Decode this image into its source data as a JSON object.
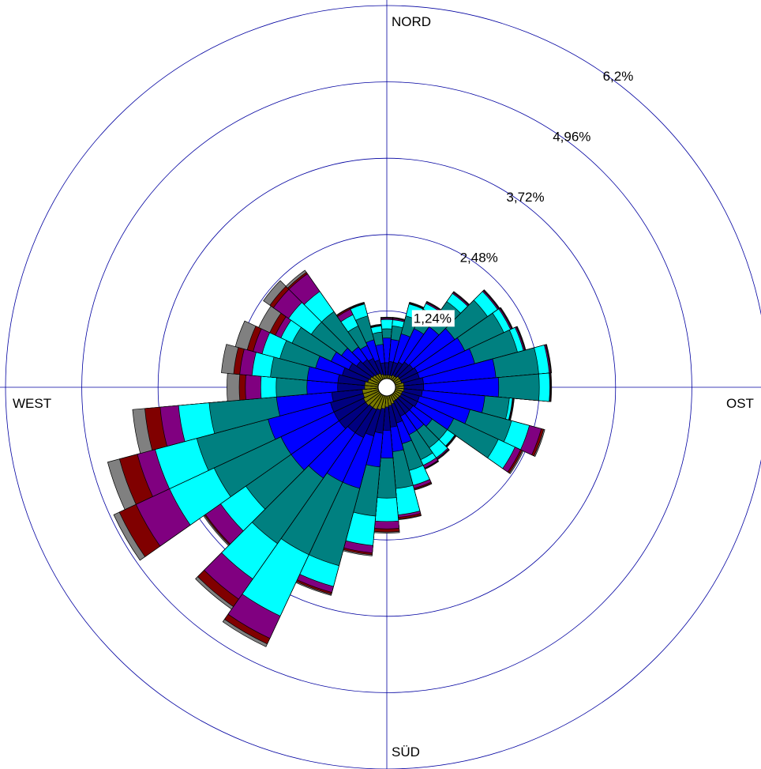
{
  "chart_data": {
    "type": "wind-rose",
    "direction_labels": {
      "north": "NORD",
      "east": "OST",
      "south": "SÜD",
      "west": "WEST"
    },
    "ring_values": [
      1.24,
      2.48,
      3.72,
      4.96,
      6.2
    ],
    "ring_labels": [
      "1,24%",
      "2,48%",
      "3,72%",
      "4,96%",
      "6,2%"
    ],
    "axis_max": 6.2,
    "sector_count": 36,
    "sector_width_deg": 10,
    "class_colors": [
      "#7a7a00",
      "#000080",
      "#0000ff",
      "#008080",
      "#00ffff",
      "#800080",
      "#800000",
      "#808080"
    ],
    "cumulative_percent_by_class_note": "cumulative frequency (%) per speed class, sectors clockwise from 0° (Nord)",
    "sectors": [
      {
        "dir": 0,
        "cum": [
          0.2,
          0.4,
          0.8,
          0.95,
          1.1,
          1.12,
          1.13,
          1.14
        ]
      },
      {
        "dir": 10,
        "cum": [
          0.2,
          0.42,
          0.78,
          1.0,
          1.1,
          1.12,
          1.13,
          1.14
        ]
      },
      {
        "dir": 20,
        "cum": [
          0.2,
          0.42,
          0.9,
          1.2,
          1.4,
          1.41,
          1.42,
          1.43
        ]
      },
      {
        "dir": 30,
        "cum": [
          0.22,
          0.45,
          1.05,
          1.4,
          1.5,
          1.52,
          1.53,
          1.54
        ]
      },
      {
        "dir": 40,
        "cum": [
          0.22,
          0.5,
          1.2,
          1.7,
          1.86,
          1.88,
          1.89,
          1.9
        ]
      },
      {
        "dir": 50,
        "cum": [
          0.25,
          0.52,
          1.35,
          2.0,
          2.2,
          2.22,
          2.23,
          2.24
        ]
      },
      {
        "dir": 60,
        "cum": [
          0.25,
          0.55,
          1.4,
          2.1,
          2.22,
          2.24,
          2.25,
          2.26
        ]
      },
      {
        "dir": 70,
        "cum": [
          0.25,
          0.55,
          1.48,
          2.2,
          2.3,
          2.32,
          2.33,
          2.34
        ]
      },
      {
        "dir": 80,
        "cum": [
          0.28,
          0.6,
          1.78,
          2.48,
          2.65,
          2.67,
          2.68,
          2.69
        ]
      },
      {
        "dir": 90,
        "cum": [
          0.28,
          0.6,
          1.82,
          2.48,
          2.65,
          2.66,
          2.67,
          2.68
        ]
      },
      {
        "dir": 100,
        "cum": [
          0.28,
          0.58,
          1.6,
          2.0,
          2.05,
          2.06,
          2.07,
          2.08
        ]
      },
      {
        "dir": 110,
        "cum": [
          0.26,
          0.55,
          1.4,
          2.1,
          2.4,
          2.6,
          2.64,
          2.66
        ]
      },
      {
        "dir": 120,
        "cum": [
          0.26,
          0.55,
          1.2,
          2.0,
          2.3,
          2.4,
          2.43,
          2.45
        ]
      },
      {
        "dir": 130,
        "cum": [
          0.25,
          0.52,
          0.9,
          1.2,
          1.35,
          1.36,
          1.37,
          1.38
        ]
      },
      {
        "dir": 140,
        "cum": [
          0.25,
          0.52,
          0.85,
          1.2,
          1.4,
          1.42,
          1.43,
          1.44
        ]
      },
      {
        "dir": 150,
        "cum": [
          0.25,
          0.52,
          0.85,
          1.3,
          1.4,
          1.45,
          1.46,
          1.47
        ]
      },
      {
        "dir": 160,
        "cum": [
          0.28,
          0.6,
          0.95,
          1.4,
          1.65,
          1.7,
          1.72,
          1.73
        ]
      },
      {
        "dir": 170,
        "cum": [
          0.3,
          0.65,
          1.05,
          1.65,
          2.08,
          2.12,
          2.15,
          2.16
        ]
      },
      {
        "dir": 180,
        "cum": [
          0.32,
          0.7,
          1.15,
          1.8,
          2.18,
          2.3,
          2.35,
          2.37
        ]
      },
      {
        "dir": 190,
        "cum": [
          0.35,
          0.75,
          1.3,
          2.1,
          2.58,
          2.7,
          2.73,
          2.75
        ]
      },
      {
        "dir": 200,
        "cum": [
          0.38,
          0.82,
          1.7,
          3.0,
          3.35,
          3.45,
          3.48,
          3.5
        ]
      },
      {
        "dir": 210,
        "cum": [
          0.4,
          0.9,
          1.7,
          3.0,
          4.1,
          4.5,
          4.6,
          4.65
        ]
      },
      {
        "dir": 220,
        "cum": [
          0.4,
          0.9,
          1.8,
          3.1,
          3.8,
          4.2,
          4.35,
          4.4
        ]
      },
      {
        "dir": 230,
        "cum": [
          0.42,
          0.95,
          1.9,
          2.8,
          3.3,
          3.6,
          3.62,
          3.64
        ]
      },
      {
        "dir": 240,
        "cum": [
          0.42,
          0.95,
          1.9,
          3.1,
          3.9,
          4.5,
          4.8,
          4.9
        ]
      },
      {
        "dir": 250,
        "cum": [
          0.4,
          0.95,
          2.0,
          3.2,
          3.9,
          4.2,
          4.5,
          4.7
        ]
      },
      {
        "dir": 260,
        "cum": [
          0.4,
          0.9,
          1.8,
          2.9,
          3.4,
          3.7,
          3.95,
          4.15
        ]
      },
      {
        "dir": 270,
        "cum": [
          0.36,
          0.8,
          1.3,
          1.8,
          2.05,
          2.3,
          2.4,
          2.6
        ]
      },
      {
        "dir": 280,
        "cum": [
          0.36,
          0.8,
          1.3,
          1.9,
          2.2,
          2.4,
          2.5,
          2.7
        ]
      },
      {
        "dir": 290,
        "cum": [
          0.32,
          0.75,
          1.2,
          1.8,
          2.1,
          2.25,
          2.35,
          2.55
        ]
      },
      {
        "dir": 300,
        "cum": [
          0.3,
          0.68,
          1.0,
          1.7,
          1.9,
          2.0,
          2.1,
          2.3
        ]
      },
      {
        "dir": 310,
        "cum": [
          0.28,
          0.6,
          0.9,
          1.5,
          1.95,
          2.25,
          2.32,
          2.45
        ]
      },
      {
        "dir": 320,
        "cum": [
          0.26,
          0.55,
          0.8,
          1.5,
          1.9,
          2.25,
          2.28,
          2.32
        ]
      },
      {
        "dir": 330,
        "cum": [
          0.25,
          0.52,
          0.75,
          1.1,
          1.3,
          1.4,
          1.42,
          1.43
        ]
      },
      {
        "dir": 340,
        "cum": [
          0.22,
          0.46,
          0.8,
          1.2,
          1.4,
          1.41,
          1.42,
          1.43
        ]
      },
      {
        "dir": 350,
        "cum": [
          0.2,
          0.4,
          0.7,
          0.9,
          1.0,
          1.01,
          1.02,
          1.03
        ]
      }
    ]
  }
}
